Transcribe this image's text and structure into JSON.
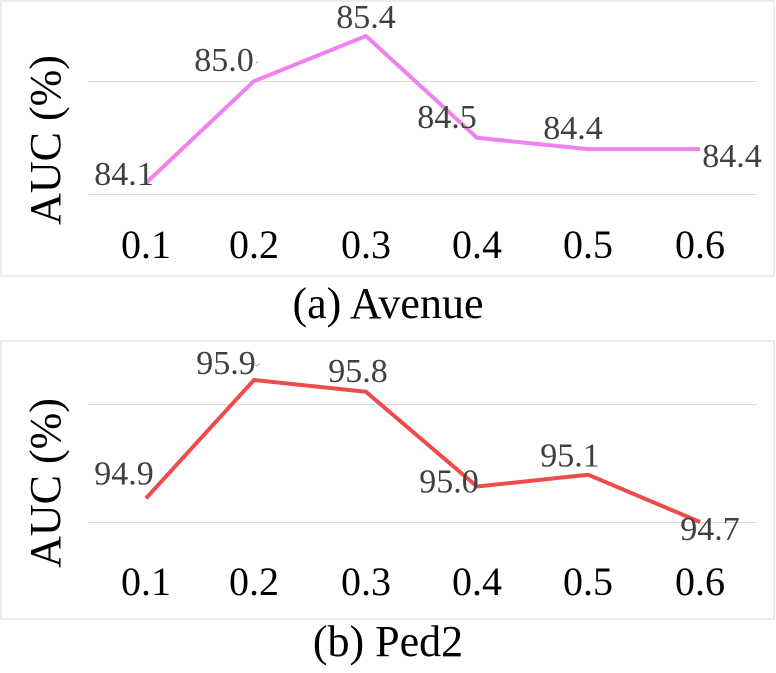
{
  "chart_data": [
    {
      "type": "line",
      "title": "(a) Avenue",
      "xlabel": "",
      "ylabel": "AUC (%)",
      "categories": [
        "0.1",
        "0.2",
        "0.3",
        "0.4",
        "0.5",
        "0.6"
      ],
      "series": [
        {
          "name": "Avenue",
          "values": [
            84.1,
            85.0,
            85.4,
            84.5,
            84.4,
            84.4
          ],
          "color": "#ee82ee"
        }
      ],
      "data_labels": [
        "84.1",
        "85.0",
        "85.4",
        "84.5",
        "84.4",
        "84.4"
      ],
      "ylim": [
        84.0,
        85.5
      ],
      "gridlines": [
        84.0,
        85.0
      ],
      "grid": true
    },
    {
      "type": "line",
      "title": "(b) Ped2",
      "xlabel": "",
      "ylabel": "AUC (%)",
      "categories": [
        "0.1",
        "0.2",
        "0.3",
        "0.4",
        "0.5",
        "0.6"
      ],
      "series": [
        {
          "name": "Ped2",
          "values": [
            94.9,
            95.9,
            95.8,
            95.0,
            95.1,
            94.7
          ],
          "color": "#f04b4b"
        }
      ],
      "data_labels": [
        "94.9",
        "95.9",
        "95.8",
        "95.0",
        "95.1",
        "94.7"
      ],
      "ylim": [
        94.6,
        96.0
      ],
      "gridlines": [
        94.7,
        95.7
      ],
      "grid": true
    }
  ]
}
